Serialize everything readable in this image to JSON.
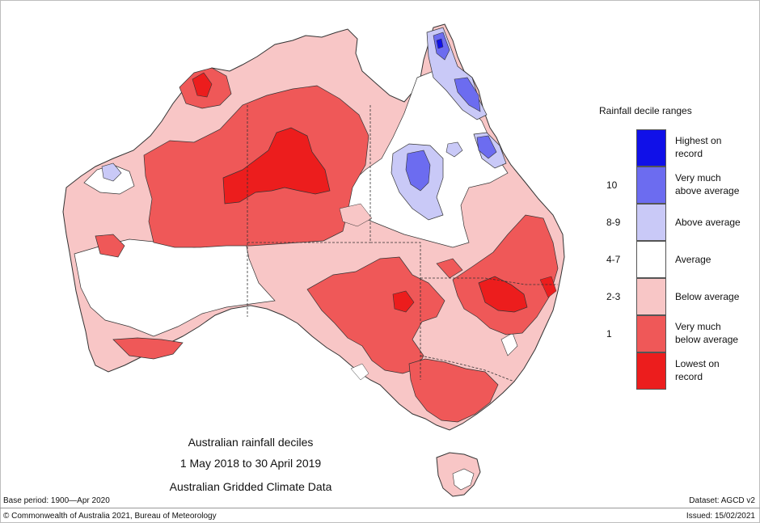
{
  "title": {
    "line1": "Australian rainfall deciles",
    "line2": "1 May 2018 to 30 April 2019",
    "line3": "Australian Gridded Climate Data"
  },
  "legend": {
    "title": "Rainfall decile ranges",
    "items": [
      {
        "code": "",
        "label1": "Highest on",
        "label2": "record",
        "color": "#1010e8"
      },
      {
        "code": "10",
        "label1": "Very much",
        "label2": "above average",
        "color": "#6c6cf0"
      },
      {
        "code": "8-9",
        "label1": "Above average",
        "label2": "",
        "color": "#c9c9f7"
      },
      {
        "code": "4-7",
        "label1": "Average",
        "label2": "",
        "color": "#ffffff"
      },
      {
        "code": "2-3",
        "label1": "Below average",
        "label2": "",
        "color": "#f8c6c6"
      },
      {
        "code": "1",
        "label1": "Very much",
        "label2": "below average",
        "color": "#ef5858"
      },
      {
        "code": "",
        "label1": "Lowest on",
        "label2": "record",
        "color": "#ec1d1d"
      }
    ]
  },
  "footer": {
    "base_period": "Base period: 1900—Apr 2020",
    "dataset": "Dataset: AGCD v2",
    "copyright": "© Commonwealth of Australia 2021, Bureau of Meteorology",
    "issued": "Issued: 15/02/2021"
  },
  "map_colors": {
    "average": "#ffffff",
    "below_average": "#f8c6c6",
    "very_much_below": "#ef5858",
    "lowest_on_record": "#ec1d1d",
    "above_average": "#c9c9f7",
    "very_much_above": "#6c6cf0",
    "highest_on_record": "#1010e8"
  }
}
